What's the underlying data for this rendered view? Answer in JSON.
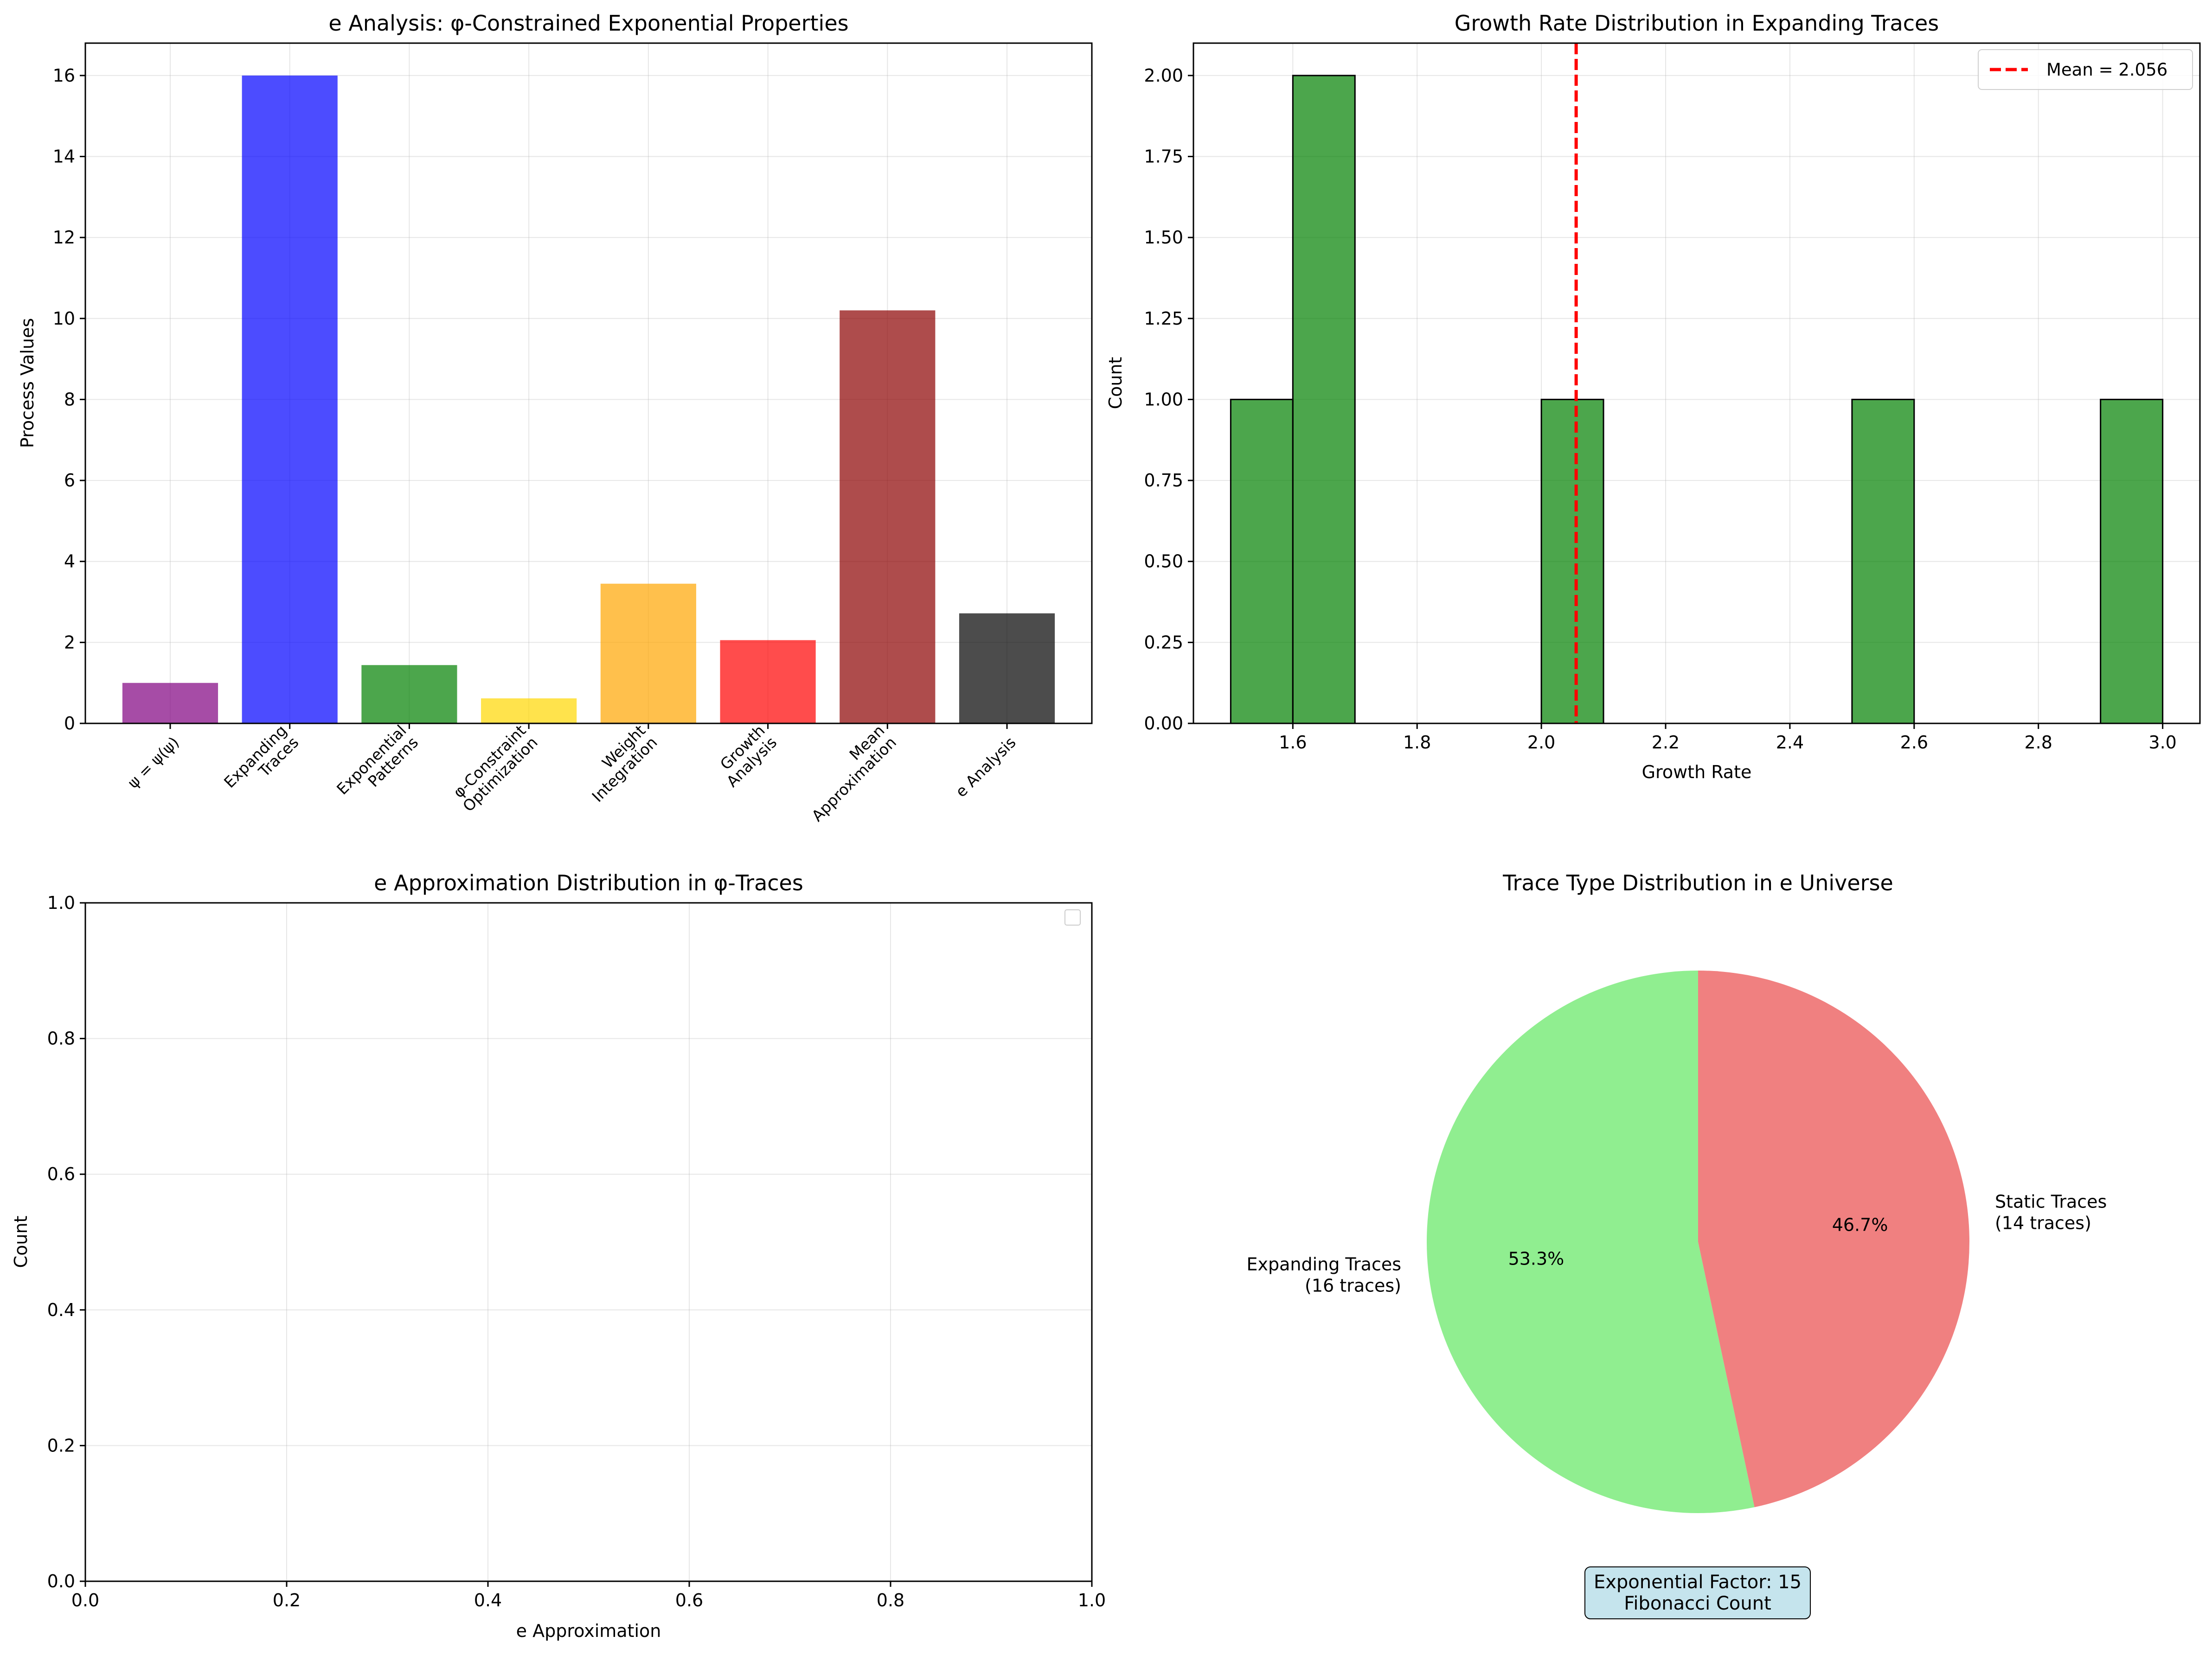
{
  "chart_data": [
    {
      "type": "bar",
      "title": "e Analysis: φ-Constrained Exponential Properties",
      "xlabel": "",
      "ylabel": "Process Values",
      "ylim": [
        0,
        16.8
      ],
      "yticks": [
        "0",
        "2",
        "4",
        "6",
        "8",
        "10",
        "12",
        "14",
        "16"
      ],
      "categories": [
        "ψ = ψ(ψ)",
        "Expanding\nTraces",
        "Exponential\nPatterns",
        "φ-Constraint\nOptimization",
        "Weight\nIntegration",
        "Growth\nAnalysis",
        "Mean\nApproximation",
        "e Analysis"
      ],
      "values": [
        1.0,
        16,
        1.44,
        0.618,
        3.45,
        2.056,
        10.2,
        2.718
      ],
      "colors": [
        "#800080",
        "#0000ff",
        "#008000",
        "#ffd700",
        "#ffa500",
        "#ff0000",
        "#8b0000",
        "#000000"
      ],
      "grid": true
    },
    {
      "type": "bar",
      "subtype": "histogram",
      "title": "Growth Rate Distribution in Expanding Traces",
      "xlabel": "Growth Rate",
      "ylabel": "Count",
      "xlim": [
        1.44,
        3.06
      ],
      "ylim": [
        0,
        2.1
      ],
      "xticks": [
        "1.6",
        "1.8",
        "2.0",
        "2.2",
        "2.4",
        "2.6",
        "2.8",
        "3.0"
      ],
      "yticks": [
        "0.00",
        "0.25",
        "0.50",
        "0.75",
        "1.00",
        "1.25",
        "1.50",
        "1.75",
        "2.00"
      ],
      "bins": [
        {
          "x0": 1.5,
          "x1": 1.6,
          "count": 1
        },
        {
          "x0": 1.6,
          "x1": 1.7,
          "count": 2
        },
        {
          "x0": 1.7,
          "x1": 1.8,
          "count": 0
        },
        {
          "x0": 1.8,
          "x1": 1.9,
          "count": 0
        },
        {
          "x0": 1.9,
          "x1": 2.0,
          "count": 0
        },
        {
          "x0": 2.0,
          "x1": 2.1,
          "count": 1
        },
        {
          "x0": 2.1,
          "x1": 2.2,
          "count": 0
        },
        {
          "x0": 2.2,
          "x1": 2.3,
          "count": 0
        },
        {
          "x0": 2.3,
          "x1": 2.4,
          "count": 0
        },
        {
          "x0": 2.4,
          "x1": 2.5,
          "count": 0
        },
        {
          "x0": 2.5,
          "x1": 2.6,
          "count": 1
        },
        {
          "x0": 2.6,
          "x1": 2.7,
          "count": 0
        },
        {
          "x0": 2.7,
          "x1": 2.8,
          "count": 0
        },
        {
          "x0": 2.8,
          "x1": 2.9,
          "count": 0
        },
        {
          "x0": 2.9,
          "x1": 3.0,
          "count": 1
        }
      ],
      "bar_color": "#008000",
      "mean_line": {
        "value": 2.056,
        "label": "Mean = 2.056",
        "color": "#ff0000"
      },
      "legend": "top-right",
      "grid": true
    },
    {
      "type": "bar",
      "subtype": "histogram",
      "title": "e Approximation Distribution in φ-Traces",
      "xlabel": "e Approximation",
      "ylabel": "Count",
      "xlim": [
        0,
        1
      ],
      "ylim": [
        0,
        1
      ],
      "xticks": [
        "0.0",
        "0.2",
        "0.4",
        "0.6",
        "0.8",
        "1.0"
      ],
      "yticks": [
        "0.0",
        "0.2",
        "0.4",
        "0.6",
        "0.8",
        "1.0"
      ],
      "bins": [],
      "legend": "top-right",
      "grid": true
    },
    {
      "type": "pie",
      "title": "Trace Type Distribution in e Universe",
      "slices": [
        {
          "label": "Expanding Traces\n(16 traces)",
          "value": 16,
          "percent": "53.3%",
          "color": "#90ee90"
        },
        {
          "label": "Static Traces\n(14 traces)",
          "value": 14,
          "percent": "46.7%",
          "color": "#f08080"
        }
      ],
      "annotation": "Exponential Factor: 15\nFibonacci Count",
      "annotation_bg": "#add8e6"
    }
  ]
}
